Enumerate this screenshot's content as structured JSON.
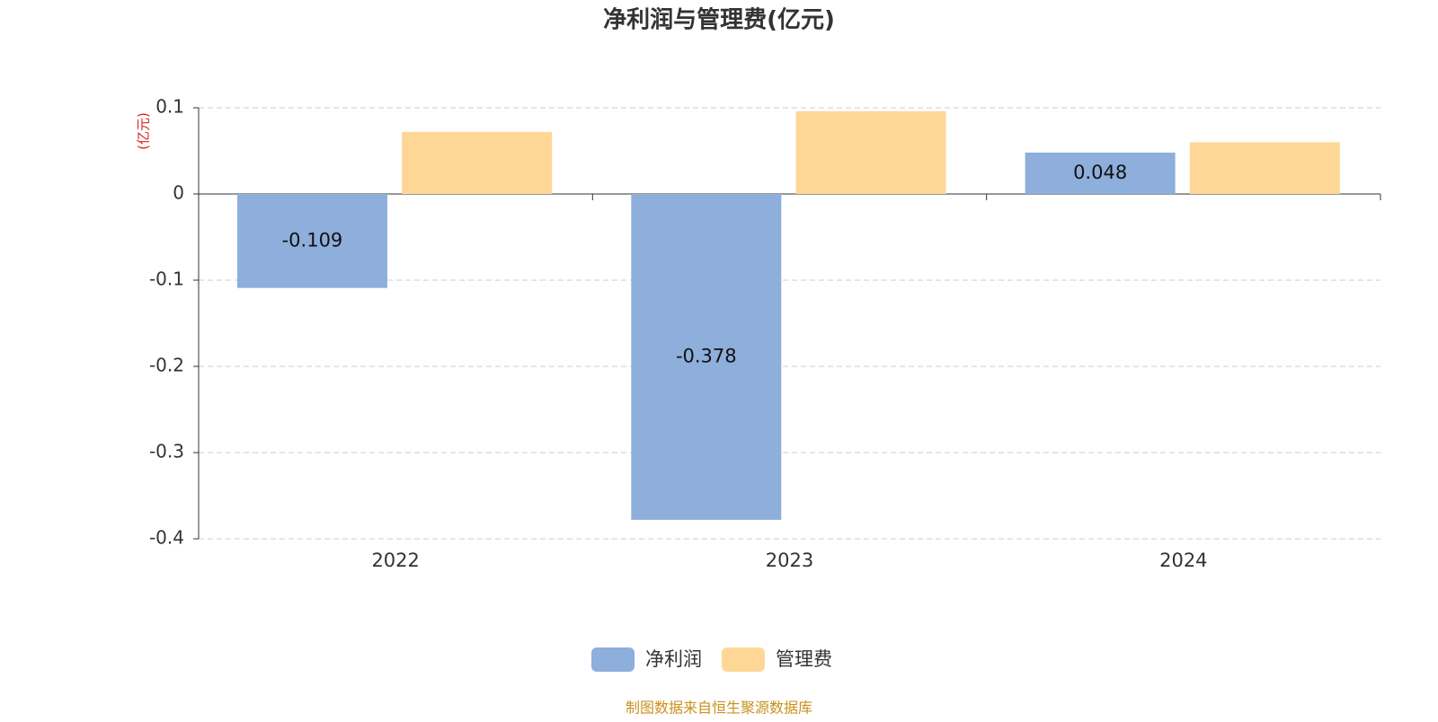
{
  "chart_data": {
    "type": "bar",
    "title": "净利润与管理费(亿元)",
    "y_label": "(亿元)",
    "categories": [
      "2022",
      "2023",
      "2024"
    ],
    "series": [
      {
        "name": "净利润",
        "color": "#8eaedb",
        "values": [
          -0.109,
          -0.378,
          0.048
        ],
        "show_labels": true
      },
      {
        "name": "管理费",
        "color": "#fed797",
        "values": [
          0.072,
          0.096,
          0.06
        ],
        "show_labels": false
      }
    ],
    "ylim": [
      -0.4,
      0.1
    ],
    "yticks": [
      0.1,
      0,
      -0.1,
      -0.2,
      -0.3,
      -0.4
    ],
    "grid": true,
    "legend": "bottom",
    "source": "制图数据来自恒生聚源数据库"
  }
}
